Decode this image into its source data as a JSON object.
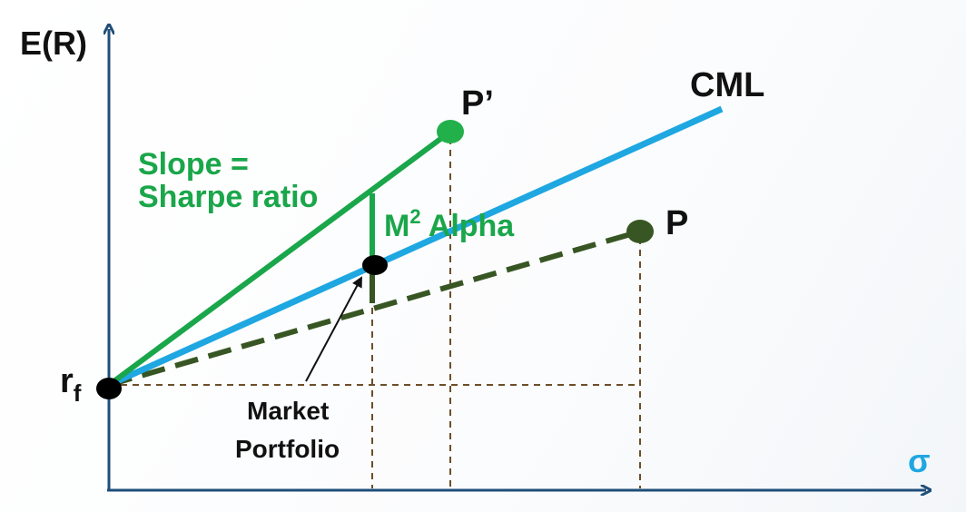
{
  "axes": {
    "y_label": "E(R)",
    "x_label": "σ"
  },
  "labels": {
    "rf_main": "r",
    "rf_sub": "f",
    "cml": "CML",
    "p_prime": "P’",
    "p": "P",
    "slope_line1": "Slope =",
    "slope_line2": "Sharpe ratio",
    "m2_main": "M",
    "m2_sup": "2",
    "m2_rest": " Alpha",
    "market_line1": "Market",
    "market_line2": "Portfolio"
  },
  "colors": {
    "axis": "#1f4e79",
    "cml": "#1ea7e1",
    "sharpe_green": "#1aa64a",
    "p_line": "#375623",
    "point_black": "#000000",
    "p_prime_dot": "#22b04b",
    "p_dot": "#375623",
    "sigma_label": "#1ea7e1",
    "dashed_guides": "#6b4f2a",
    "text": "#111111"
  }
}
